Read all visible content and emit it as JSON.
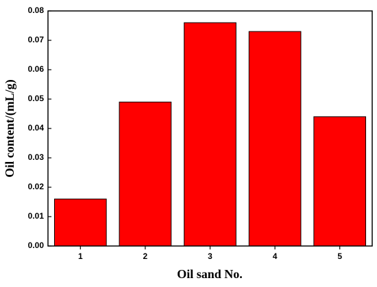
{
  "chart_data": {
    "type": "bar",
    "x_label": "Oil sand No.",
    "y_label": "Oil content/(mL/g)",
    "categories": [
      "1",
      "2",
      "3",
      "4",
      "5"
    ],
    "values": [
      0.016,
      0.049,
      0.076,
      0.073,
      0.044
    ],
    "color": "#ff0000",
    "ylim": [
      0,
      0.08
    ],
    "yticks": [
      {
        "value": 0,
        "label": "0.00"
      },
      {
        "value": 0.01,
        "label": "0.01"
      },
      {
        "value": 0.02,
        "label": "0.02"
      },
      {
        "value": 0.03,
        "label": "0.03"
      },
      {
        "value": 0.04,
        "label": "0.04"
      },
      {
        "value": 0.05,
        "label": "0.05"
      },
      {
        "value": 0.06,
        "label": "0.06"
      },
      {
        "value": 0.07,
        "label": "0.07"
      },
      {
        "value": 0.08,
        "label": "0.08"
      }
    ],
    "grid": false
  }
}
